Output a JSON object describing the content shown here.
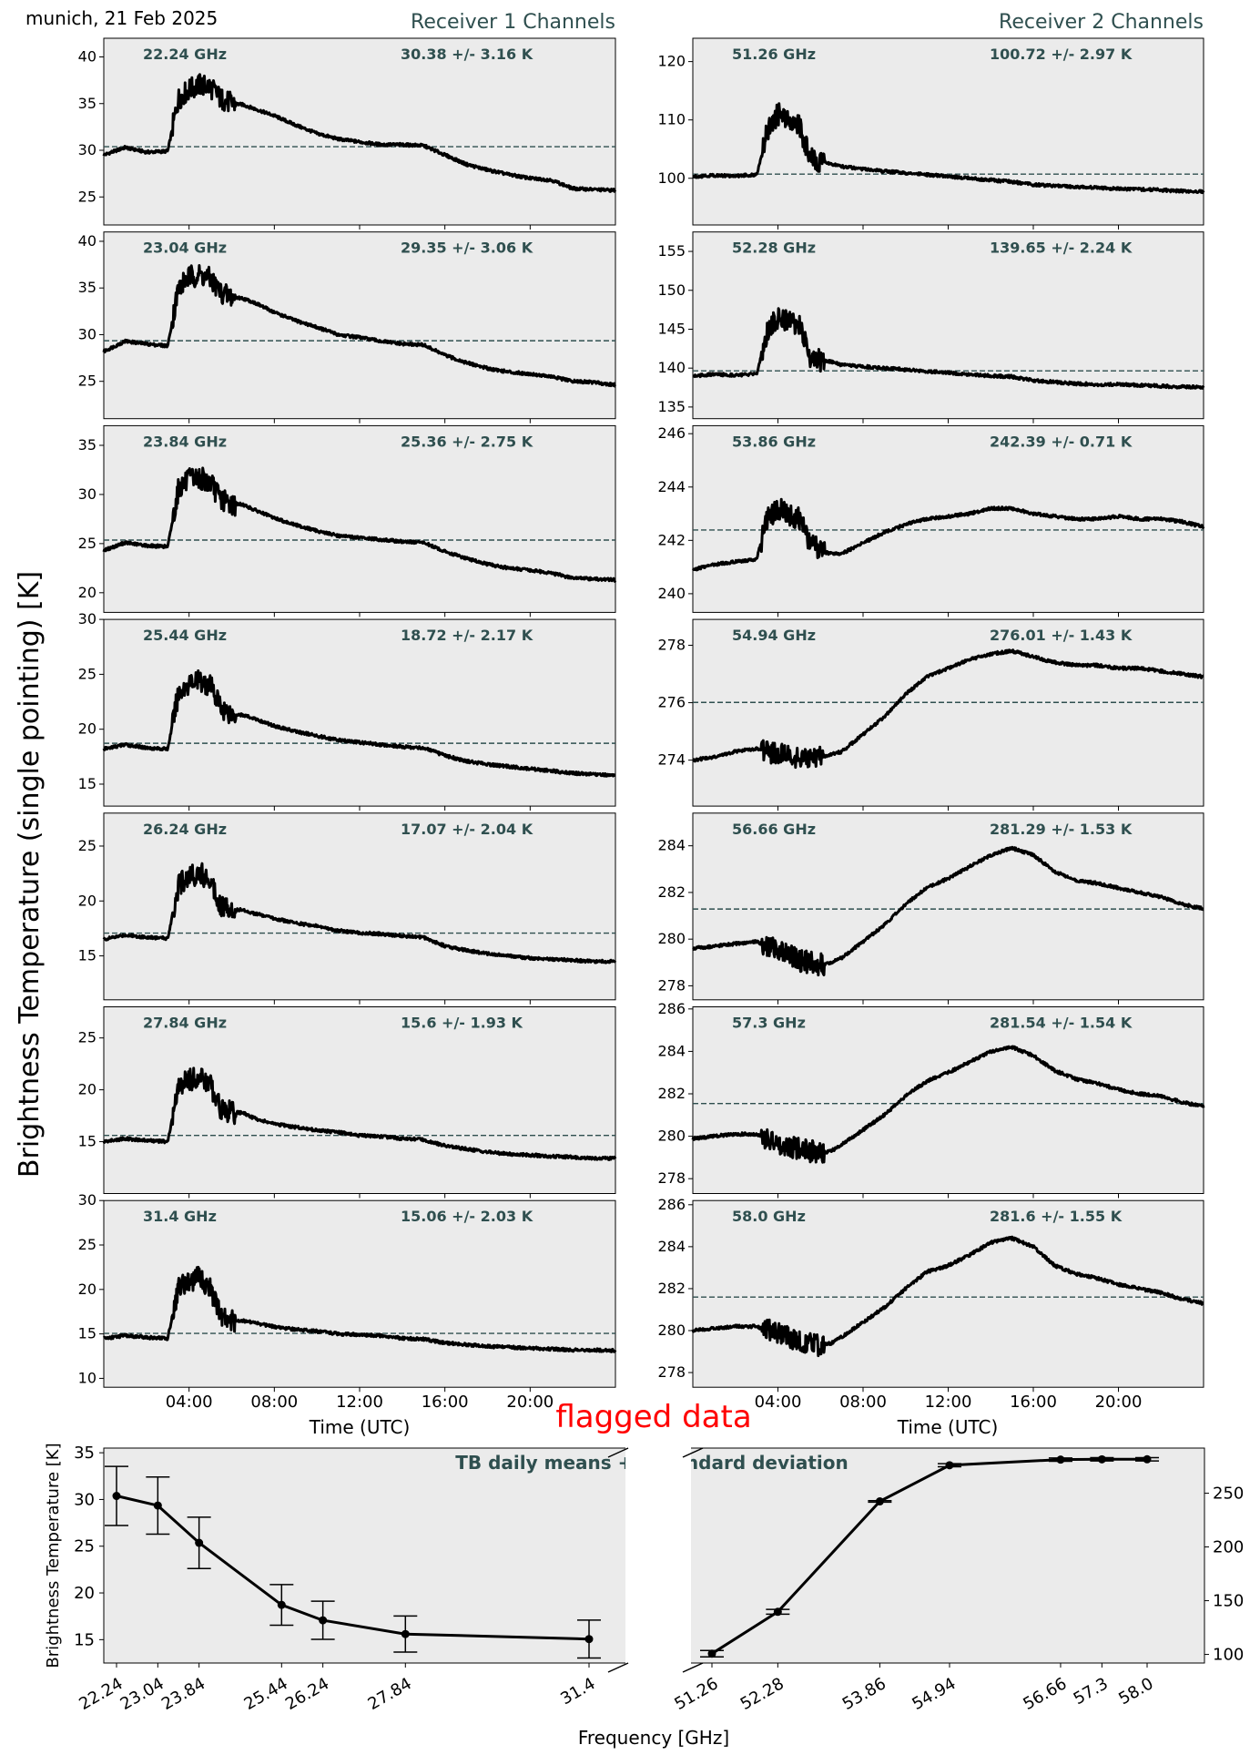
{
  "header": {
    "location_date": "munich, 21 Feb 2025",
    "receiver1_title": "Receiver 1 Channels",
    "receiver2_title": "Receiver 2 Channels"
  },
  "main": {
    "ylabel": "Brightness Temperature (single pointing) [K]",
    "xlabel": "Time (UTC)",
    "flag_note": "flagged data"
  },
  "colors": {
    "panel_bg": "#ebebeb",
    "label": "#2f4f4f",
    "trace": "#000000",
    "flag": "#ff0000"
  },
  "chart_data": [
    {
      "type": "line",
      "group": "Receiver 1 Channels",
      "xlabel": "Time (UTC)",
      "ylabel": "Brightness Temperature (single pointing) [K]",
      "x_ticks": [
        "04:00",
        "08:00",
        "12:00",
        "16:00",
        "20:00"
      ],
      "xlim_hours": [
        0,
        24
      ],
      "x_hours": [
        0,
        1,
        2,
        3,
        3.5,
        4,
        4.5,
        5,
        5.5,
        6,
        6.5,
        7,
        8,
        9,
        10,
        11,
        12,
        13,
        14,
        15,
        16,
        17,
        18,
        19,
        20,
        21,
        22,
        23,
        24
      ],
      "channels": [
        {
          "freq": "22.24 GHz",
          "stats": "30.38 +/- 3.16 K",
          "mean": 30.38,
          "ylim": [
            22,
            42
          ],
          "yticks": [
            25,
            30,
            35,
            40
          ],
          "values": [
            29.5,
            30.3,
            29.8,
            29.9,
            35.5,
            36.5,
            37,
            36.8,
            35.5,
            35,
            34.9,
            34.5,
            33.7,
            32.7,
            31.8,
            31.2,
            30.9,
            30.6,
            30.6,
            30.5,
            29.5,
            28.5,
            27.9,
            27.4,
            27,
            26.8,
            25.9,
            25.8,
            25.7
          ]
        },
        {
          "freq": "23.04 GHz",
          "stats": "29.35 +/- 3.06 K",
          "mean": 29.35,
          "ylim": [
            21,
            41
          ],
          "yticks": [
            25,
            30,
            35,
            40
          ],
          "values": [
            28.2,
            29.3,
            29,
            28.8,
            35,
            36.2,
            36.4,
            36,
            34.5,
            34,
            33.9,
            33.5,
            32.4,
            31.5,
            30.8,
            30,
            29.7,
            29.3,
            29,
            28.9,
            27.8,
            27,
            26.4,
            26,
            25.8,
            25.5,
            25,
            24.9,
            24.6
          ]
        },
        {
          "freq": "23.84 GHz",
          "stats": "25.36 +/- 2.75 K",
          "mean": 25.36,
          "ylim": [
            18,
            37
          ],
          "yticks": [
            20,
            25,
            30,
            35
          ],
          "values": [
            24.3,
            25.1,
            24.8,
            24.7,
            30.6,
            31.5,
            31.7,
            31.2,
            29.5,
            29,
            29,
            28.5,
            27.6,
            26.9,
            26.3,
            25.8,
            25.6,
            25.4,
            25.2,
            25.1,
            24.2,
            23.5,
            22.9,
            22.5,
            22.3,
            22,
            21.5,
            21.4,
            21.3
          ]
        },
        {
          "freq": "25.44 GHz",
          "stats": "18.72 +/- 2.17 K",
          "mean": 18.72,
          "ylim": [
            13,
            30
          ],
          "yticks": [
            15,
            20,
            25,
            30
          ],
          "values": [
            18.2,
            18.6,
            18.3,
            18.2,
            23.3,
            24.2,
            24.4,
            24,
            22,
            21.4,
            21.3,
            21,
            20.3,
            19.8,
            19.4,
            19,
            18.8,
            18.6,
            18.4,
            18.3,
            17.6,
            17.1,
            16.8,
            16.6,
            16.4,
            16.2,
            16,
            15.9,
            15.8
          ]
        },
        {
          "freq": "26.24 GHz",
          "stats": "17.07 +/- 2.04 K",
          "mean": 17.07,
          "ylim": [
            11,
            28
          ],
          "yticks": [
            15,
            20,
            25
          ],
          "values": [
            16.5,
            16.9,
            16.7,
            16.6,
            21.4,
            22.3,
            22.5,
            22,
            19.6,
            19.2,
            19.2,
            18.9,
            18.4,
            18,
            17.7,
            17.3,
            17.1,
            17,
            16.8,
            16.7,
            15.9,
            15.5,
            15.2,
            15,
            14.8,
            14.7,
            14.6,
            14.5,
            14.5
          ]
        },
        {
          "freq": "27.84 GHz",
          "stats": "15.6 +/- 1.93 K",
          "mean": 15.6,
          "ylim": [
            10,
            28
          ],
          "yticks": [
            15,
            20,
            25
          ],
          "values": [
            15,
            15.3,
            15.1,
            15,
            20.2,
            21,
            21.2,
            20.5,
            18.2,
            17.8,
            17.8,
            17.3,
            16.7,
            16.4,
            16.1,
            15.9,
            15.6,
            15.5,
            15.3,
            15.2,
            14.6,
            14.3,
            14,
            13.8,
            13.7,
            13.6,
            13.5,
            13.4,
            13.4
          ]
        },
        {
          "freq": "31.4 GHz",
          "stats": "15.06 +/- 2.03 K",
          "mean": 15.06,
          "ylim": [
            9,
            30
          ],
          "yticks": [
            10,
            15,
            20,
            25,
            30
          ],
          "values": [
            14.5,
            14.8,
            14.6,
            14.5,
            20.3,
            21,
            21.3,
            20.2,
            16.8,
            16.5,
            16.5,
            16.3,
            15.8,
            15.5,
            15.3,
            15,
            14.9,
            14.8,
            14.5,
            14.4,
            14,
            13.8,
            13.6,
            13.5,
            13.4,
            13.3,
            13.2,
            13.2,
            13.1
          ]
        }
      ]
    },
    {
      "type": "line",
      "group": "Receiver 2 Channels",
      "xlabel": "Time (UTC)",
      "ylabel": "Brightness Temperature (single pointing) [K]",
      "x_ticks": [
        "04:00",
        "08:00",
        "12:00",
        "16:00",
        "20:00"
      ],
      "xlim_hours": [
        0,
        24
      ],
      "x_hours": [
        0,
        1,
        2,
        3,
        3.5,
        4,
        4.5,
        5,
        5.5,
        6,
        6.5,
        7,
        8,
        9,
        10,
        11,
        12,
        13,
        14,
        15,
        16,
        17,
        18,
        19,
        20,
        21,
        22,
        23,
        24
      ],
      "channels": [
        {
          "freq": "51.26 GHz",
          "stats": "100.72 +/- 2.97 K",
          "mean": 100.72,
          "ylim": [
            92,
            124
          ],
          "yticks": [
            100,
            110,
            120
          ],
          "values": [
            100.3,
            100.5,
            100.4,
            100.6,
            108,
            111,
            110.5,
            109,
            103.5,
            102.7,
            102.5,
            102,
            101.6,
            101.2,
            100.9,
            100.6,
            100.3,
            100,
            99.7,
            99.4,
            98.9,
            98.7,
            98.5,
            98.4,
            98.2,
            98.1,
            98,
            97.8,
            97.7
          ]
        },
        {
          "freq": "52.28 GHz",
          "stats": "139.65 +/- 2.24 K",
          "mean": 139.65,
          "ylim": [
            133.5,
            157.5
          ],
          "yticks": [
            135,
            140,
            145,
            150,
            155
          ],
          "values": [
            139,
            139.2,
            139.1,
            139.2,
            144.8,
            146.5,
            146.2,
            145.5,
            141.5,
            141,
            140.8,
            140.4,
            140.2,
            140,
            139.8,
            139.6,
            139.4,
            139.2,
            139,
            138.9,
            138.4,
            138.2,
            138,
            137.9,
            137.9,
            137.8,
            137.7,
            137.6,
            137.5
          ]
        },
        {
          "freq": "53.86 GHz",
          "stats": "242.39 +/- 0.71 K",
          "mean": 242.39,
          "ylim": [
            239.3,
            246.3
          ],
          "yticks": [
            240,
            242,
            244,
            246
          ],
          "values": [
            240.9,
            241.1,
            241.2,
            241.3,
            242.8,
            243.2,
            243,
            242.8,
            241.9,
            241.6,
            241.5,
            241.5,
            241.9,
            242.3,
            242.6,
            242.8,
            242.9,
            243,
            243.2,
            243.2,
            243,
            242.9,
            242.8,
            242.8,
            242.9,
            242.8,
            242.8,
            242.7,
            242.5
          ]
        },
        {
          "freq": "54.94 GHz",
          "stats": "276.01 +/- 1.43 K",
          "mean": 276.01,
          "ylim": [
            272.4,
            278.9
          ],
          "yticks": [
            274,
            276,
            278
          ],
          "values": [
            274,
            274.1,
            274.3,
            274.4,
            274.3,
            274.2,
            274.2,
            274.1,
            274,
            274.1,
            274.2,
            274.3,
            274.9,
            275.5,
            276.3,
            276.9,
            277.2,
            277.5,
            277.7,
            277.8,
            277.6,
            277.4,
            277.3,
            277.3,
            277.2,
            277.2,
            277.1,
            277,
            276.9
          ]
        },
        {
          "freq": "56.66 GHz",
          "stats": "281.29 +/- 1.53 K",
          "mean": 281.29,
          "ylim": [
            277.4,
            285.4
          ],
          "yticks": [
            278,
            280,
            282,
            284
          ],
          "values": [
            279.6,
            279.7,
            279.8,
            279.9,
            279.7,
            279.5,
            279.3,
            279.1,
            279,
            278.9,
            279,
            279.2,
            279.9,
            280.6,
            281.5,
            282.2,
            282.6,
            283.1,
            283.6,
            283.9,
            283.6,
            282.9,
            282.5,
            282.4,
            282.2,
            282,
            281.8,
            281.5,
            281.3
          ]
        },
        {
          "freq": "57.3 GHz",
          "stats": "281.54 +/- 1.54 K",
          "mean": 281.54,
          "ylim": [
            277.3,
            286.1
          ],
          "yticks": [
            278,
            280,
            282,
            284,
            286
          ],
          "values": [
            279.9,
            280,
            280.1,
            280.1,
            279.9,
            279.7,
            279.5,
            279.4,
            279.3,
            279.2,
            279.3,
            279.6,
            280.3,
            281,
            281.9,
            282.6,
            283,
            283.5,
            284,
            284.2,
            283.8,
            283.1,
            282.7,
            282.5,
            282.2,
            282,
            281.9,
            281.6,
            281.4
          ]
        },
        {
          "freq": "58.0 GHz",
          "stats": "281.6 +/- 1.55 K",
          "mean": 281.6,
          "ylim": [
            277.3,
            286.2
          ],
          "yticks": [
            278,
            280,
            282,
            284,
            286
          ],
          "values": [
            280,
            280.1,
            280.2,
            280.2,
            280,
            279.9,
            279.7,
            279.5,
            279.4,
            279.3,
            279.4,
            279.7,
            280.4,
            281.1,
            282,
            282.8,
            283.1,
            283.6,
            284.2,
            284.4,
            284,
            283.1,
            282.7,
            282.5,
            282.2,
            282,
            281.8,
            281.5,
            281.3
          ]
        }
      ]
    },
    {
      "type": "line",
      "title": "TB daily means +/- standard deviation",
      "xlabel": "Frequency [GHz]",
      "ylabel_left": "Brightness Temperature [K]",
      "left_axis": {
        "categories": [
          "22.24",
          "23.04",
          "23.84",
          "25.44",
          "26.24",
          "27.84",
          "31.4"
        ],
        "x": [
          22.24,
          23.04,
          23.84,
          25.44,
          26.24,
          27.84,
          31.4
        ],
        "means": [
          30.38,
          29.35,
          25.36,
          18.72,
          17.07,
          15.6,
          15.06
        ],
        "std": [
          3.16,
          3.06,
          2.75,
          2.17,
          2.04,
          1.93,
          2.03
        ],
        "ylim": [
          12.5,
          35.5
        ],
        "yticks": [
          15,
          20,
          25,
          30,
          35
        ]
      },
      "right_axis": {
        "categories": [
          "51.26",
          "52.28",
          "53.86",
          "54.94",
          "56.66",
          "57.3",
          "58.0"
        ],
        "x": [
          51.26,
          52.28,
          53.86,
          54.94,
          56.66,
          57.3,
          58.0
        ],
        "means": [
          100.72,
          139.65,
          242.39,
          276.01,
          281.29,
          281.54,
          281.6
        ],
        "std": [
          2.97,
          2.24,
          0.71,
          1.43,
          1.53,
          1.54,
          1.55
        ],
        "ylim": [
          92,
          292
        ],
        "yticks": [
          100,
          150,
          200,
          250
        ]
      },
      "annotation": "flagged data"
    }
  ]
}
